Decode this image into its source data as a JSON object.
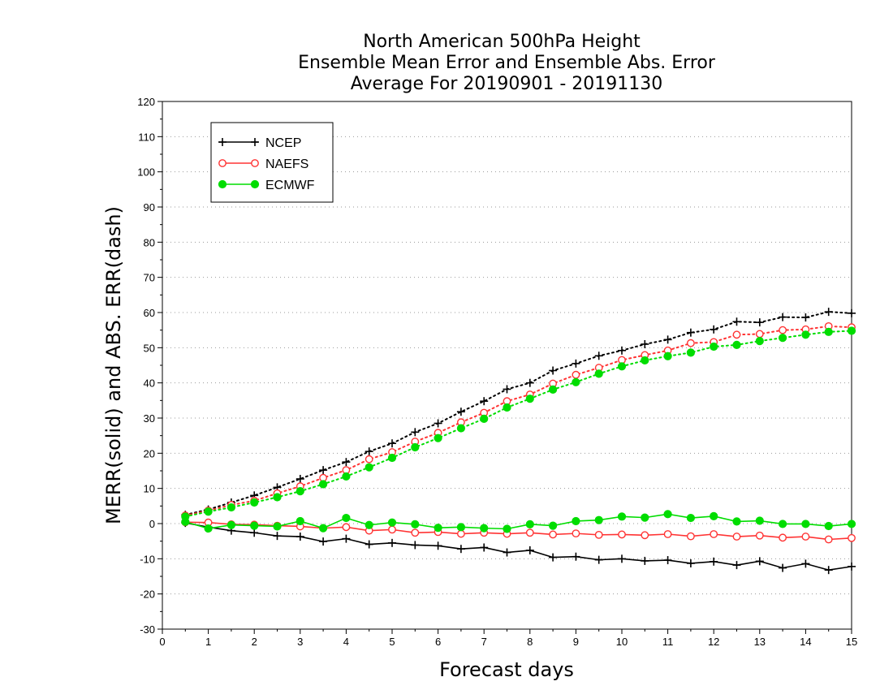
{
  "chart_data": {
    "type": "line",
    "title_lines": [
      "North American 500hPa Height",
      "Ensemble Mean Error and Ensemble Abs. Error",
      "Average For 20190901 - 20191130"
    ],
    "xlabel": "Forecast days",
    "ylabel": "MERR(solid) and ABS. ERR(dash)",
    "xlim": [
      0,
      15
    ],
    "ylim": [
      -30,
      120
    ],
    "xticks": [
      0,
      1,
      2,
      3,
      4,
      5,
      6,
      7,
      8,
      9,
      10,
      11,
      12,
      13,
      14,
      15
    ],
    "yticks": [
      -30,
      -20,
      -10,
      0,
      10,
      20,
      30,
      40,
      50,
      60,
      70,
      80,
      90,
      100,
      110,
      120
    ],
    "grid": "horizontal dotted",
    "legend_position": "top-left",
    "x": [
      0.5,
      1,
      1.5,
      2,
      2.5,
      3,
      3.5,
      4,
      4.5,
      5,
      5.5,
      6,
      6.5,
      7,
      7.5,
      8,
      8.5,
      9,
      9.5,
      10,
      10.5,
      11,
      11.5,
      12,
      12.5,
      13,
      13.5,
      14,
      14.5,
      15
    ],
    "series": [
      {
        "name": "NCEP",
        "color": "#000000",
        "marker": "plus",
        "merr": [
          0.2,
          -1.0,
          -2.0,
          -2.6,
          -3.5,
          -3.7,
          -5.1,
          -4.3,
          -5.9,
          -5.5,
          -6.1,
          -6.3,
          -7.2,
          -6.8,
          -8.2,
          -7.6,
          -9.6,
          -9.4,
          -10.3,
          -10.0,
          -10.6,
          -10.4,
          -11.3,
          -10.8,
          -11.8,
          -10.7,
          -12.6,
          -11.4,
          -13.2,
          -12.2
        ],
        "abs_err": [
          2.5,
          4.0,
          6.0,
          8.0,
          10.3,
          12.7,
          15.2,
          17.5,
          20.5,
          22.8,
          26.0,
          28.5,
          31.8,
          34.8,
          38.2,
          40.0,
          43.5,
          45.5,
          47.7,
          49.2,
          51.0,
          52.3,
          54.3,
          55.2,
          57.4,
          57.2,
          58.7,
          58.6,
          60.2,
          59.8
        ]
      },
      {
        "name": "NAEFS",
        "color": "#ff3333",
        "marker": "open-circle",
        "merr": [
          0.4,
          0.3,
          -0.2,
          -0.3,
          -0.6,
          -0.8,
          -1.3,
          -1.0,
          -2.0,
          -1.7,
          -2.6,
          -2.4,
          -2.9,
          -2.6,
          -2.9,
          -2.6,
          -3.1,
          -2.8,
          -3.2,
          -3.1,
          -3.3,
          -3.0,
          -3.6,
          -3.0,
          -3.7,
          -3.4,
          -4.0,
          -3.7,
          -4.5,
          -4.1
        ],
        "abs_err": [
          2.3,
          3.7,
          5.3,
          6.5,
          8.6,
          10.6,
          13.0,
          15.2,
          18.3,
          20.3,
          23.3,
          25.8,
          28.8,
          31.5,
          34.8,
          36.7,
          39.8,
          42.3,
          44.3,
          46.5,
          47.9,
          49.2,
          51.3,
          51.6,
          53.7,
          53.9,
          55.0,
          55.2,
          56.1,
          55.8
        ]
      },
      {
        "name": "ECMWF",
        "color": "#00dd00",
        "marker": "filled-circle",
        "merr": [
          0.5,
          -1.4,
          -0.4,
          -0.6,
          -0.8,
          0.7,
          -1.3,
          1.6,
          -0.4,
          0.3,
          -0.2,
          -1.2,
          -1.0,
          -1.3,
          -1.5,
          -0.2,
          -0.6,
          0.7,
          1.0,
          2.0,
          1.7,
          2.7,
          1.6,
          2.1,
          0.6,
          0.8,
          -0.1,
          -0.1,
          -0.7,
          -0.1
        ],
        "abs_err": [
          2.0,
          3.4,
          4.6,
          6.0,
          7.5,
          9.2,
          11.2,
          13.4,
          16.0,
          18.7,
          21.7,
          24.3,
          27.1,
          29.8,
          33.0,
          35.5,
          38.1,
          40.2,
          42.6,
          44.7,
          46.4,
          47.6,
          48.6,
          50.3,
          50.8,
          51.9,
          52.8,
          53.7,
          54.5,
          54.8
        ]
      }
    ]
  }
}
